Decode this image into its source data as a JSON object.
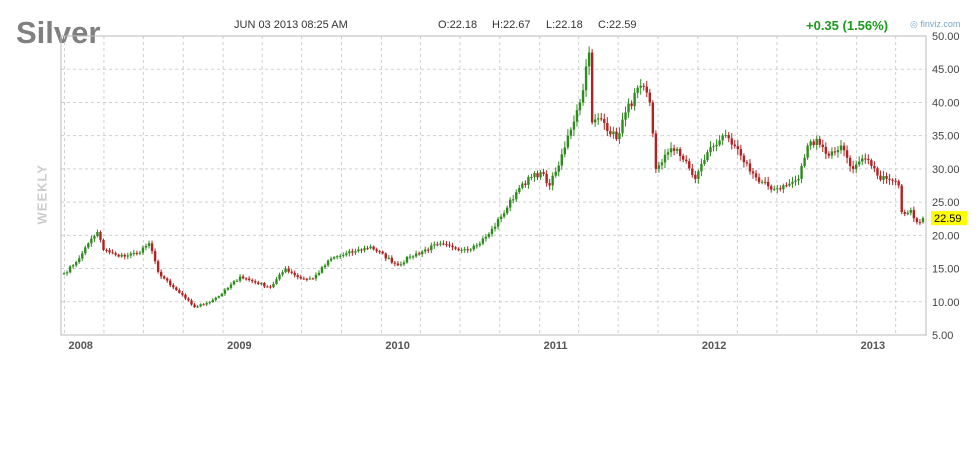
{
  "header": {
    "ticker": "Silver",
    "date": "JUN 03 2013 08:25 AM",
    "open": "O:22.18",
    "high": "H:22.67",
    "low": "L:22.18",
    "close": "C:22.59",
    "change": "+0.35 (1.56%)",
    "brand": "finviz.com",
    "brand_icon": "finviz-logo-icon",
    "interval": "WEEKLY"
  },
  "colors": {
    "up": "#2e8b1e",
    "down": "#b22222",
    "grid": "#cfcfcf",
    "last_price_bg": "#ffff00",
    "change": "#1a9a1a"
  },
  "chart_data": {
    "type": "candlestick",
    "interval": "weekly",
    "ylim": [
      5,
      50
    ],
    "y_ticks": [
      "5.00",
      "10.00",
      "15.00",
      "20.00",
      "25.00",
      "30.00",
      "35.00",
      "40.00",
      "45.00",
      "50.00"
    ],
    "x_ticks": [
      "2008",
      "2009",
      "2010",
      "2011",
      "2012",
      "2013"
    ],
    "last_price": "22.59",
    "grid": true,
    "close_anchors": [
      [
        "2007-12-31",
        14.3
      ],
      [
        "2008-01-21",
        15.5
      ],
      [
        "2008-02-11",
        17.3
      ],
      [
        "2008-03-03",
        19.5
      ],
      [
        "2008-03-17",
        20.5
      ],
      [
        "2008-03-31",
        17.8
      ],
      [
        "2008-05-05",
        16.8
      ],
      [
        "2008-06-16",
        17.3
      ],
      [
        "2008-07-14",
        18.8
      ],
      [
        "2008-08-04",
        14.5
      ],
      [
        "2008-09-01",
        12.5
      ],
      [
        "2008-10-06",
        10.5
      ],
      [
        "2008-10-27",
        9.2
      ],
      [
        "2008-11-24",
        9.8
      ],
      [
        "2008-12-29",
        11.2
      ],
      [
        "2009-02-09",
        13.8
      ],
      [
        "2009-03-09",
        13.1
      ],
      [
        "2009-04-20",
        12.2
      ],
      [
        "2009-05-25",
        15.0
      ],
      [
        "2009-06-29",
        13.5
      ],
      [
        "2009-07-27",
        13.5
      ],
      [
        "2009-09-07",
        16.5
      ],
      [
        "2009-11-02",
        17.6
      ],
      [
        "2009-12-07",
        18.3
      ],
      [
        "2010-02-08",
        15.5
      ],
      [
        "2010-03-08",
        16.8
      ],
      [
        "2010-05-10",
        18.6
      ],
      [
        "2010-06-14",
        18.2
      ],
      [
        "2010-07-12",
        17.9
      ],
      [
        "2010-08-09",
        18.5
      ],
      [
        "2010-09-06",
        20.2
      ],
      [
        "2010-10-04",
        22.8
      ],
      [
        "2010-11-08",
        26.5
      ],
      [
        "2010-11-22",
        27.8
      ],
      [
        "2011-01-03",
        29.5
      ],
      [
        "2011-01-24",
        27.5
      ],
      [
        "2011-02-14",
        30.5
      ],
      [
        "2011-03-07",
        35.0
      ],
      [
        "2011-04-04",
        40.0
      ],
      [
        "2011-04-25",
        47.5
      ],
      [
        "2011-05-02",
        37.0
      ],
      [
        "2011-05-23",
        37.5
      ],
      [
        "2011-06-27",
        34.5
      ],
      [
        "2011-07-18",
        38.5
      ],
      [
        "2011-08-22",
        42.5
      ],
      [
        "2011-09-12",
        40.0
      ],
      [
        "2011-09-26",
        30.0
      ],
      [
        "2011-10-24",
        32.5
      ],
      [
        "2011-11-14",
        33.0
      ],
      [
        "2011-12-26",
        28.5
      ],
      [
        "2012-01-23",
        32.5
      ],
      [
        "2012-02-27",
        35.0
      ],
      [
        "2012-04-09",
        32.0
      ],
      [
        "2012-05-21",
        28.0
      ],
      [
        "2012-06-25",
        27.0
      ],
      [
        "2012-07-23",
        27.5
      ],
      [
        "2012-08-20",
        28.5
      ],
      [
        "2012-09-10",
        33.5
      ],
      [
        "2012-10-01",
        34.5
      ],
      [
        "2012-10-29",
        32.0
      ],
      [
        "2012-11-26",
        33.5
      ],
      [
        "2012-12-24",
        30.0
      ],
      [
        "2013-01-21",
        31.5
      ],
      [
        "2013-02-18",
        29.0
      ],
      [
        "2013-03-11",
        28.5
      ],
      [
        "2013-04-08",
        27.5
      ],
      [
        "2013-04-15",
        23.5
      ],
      [
        "2013-05-06",
        23.8
      ],
      [
        "2013-05-20",
        22.0
      ],
      [
        "2013-06-03",
        22.59
      ]
    ]
  }
}
